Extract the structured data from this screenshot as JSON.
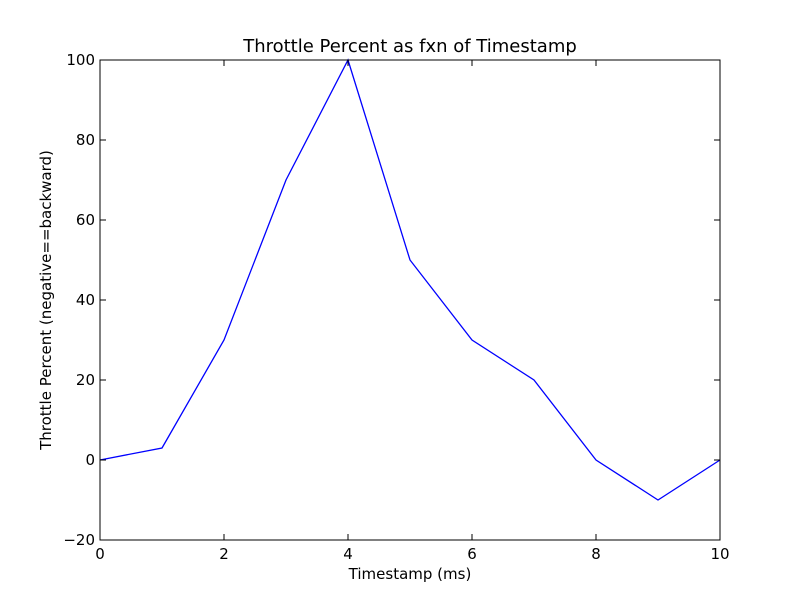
{
  "chart_data": {
    "type": "line",
    "title": "Throttle Percent as fxn of Timestamp",
    "xlabel": "Timestamp (ms)",
    "ylabel": "Throttle Percent (negative==backward)",
    "xlim": [
      0,
      10
    ],
    "ylim": [
      -20,
      100
    ],
    "xticks": [
      0,
      2,
      4,
      6,
      8,
      10
    ],
    "yticks": [
      -20,
      0,
      20,
      40,
      60,
      80,
      100
    ],
    "xtick_labels": [
      "0",
      "2",
      "4",
      "6",
      "8",
      "10"
    ],
    "ytick_labels": [
      "−20",
      "0",
      "20",
      "40",
      "60",
      "80",
      "100"
    ],
    "grid": false,
    "legend": "none",
    "series": [
      {
        "color": "#0000ff",
        "x": [
          0,
          1,
          2,
          3,
          4,
          5,
          6,
          7,
          8,
          9,
          10
        ],
        "y": [
          0,
          3,
          30,
          70,
          100,
          50,
          30,
          20,
          0,
          -10,
          0
        ]
      }
    ]
  }
}
